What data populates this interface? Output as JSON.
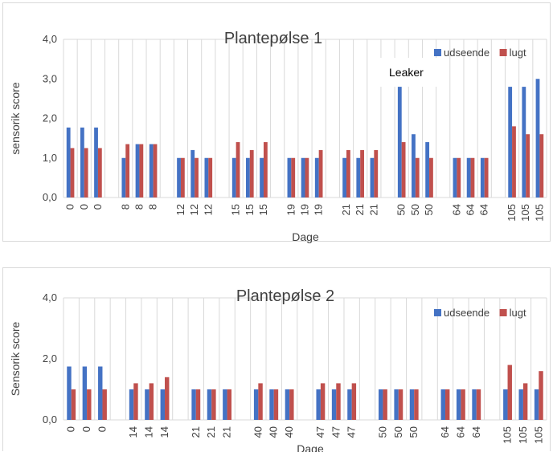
{
  "chart_data": [
    {
      "type": "bar",
      "title": "Plantepølse 1",
      "xlabel": "Dage",
      "ylabel": "sensorik score",
      "ylim": [
        0,
        4
      ],
      "yticks": [
        "0,0",
        "1,0",
        "2,0",
        "3,0",
        "4,0"
      ],
      "grid": "vertical",
      "legend": "top-right",
      "categories": [
        "0",
        "0",
        "0",
        "8",
        "8",
        "8",
        "12",
        "12",
        "12",
        "15",
        "15",
        "15",
        "19",
        "19",
        "19",
        "21",
        "21",
        "21",
        "50",
        "50",
        "50",
        "64",
        "64",
        "64",
        "105",
        "105",
        "105"
      ],
      "series": [
        {
          "name": "udseende",
          "color": "#4472C4",
          "values": [
            1.77,
            1.77,
            1.77,
            1.0,
            1.35,
            1.35,
            1.0,
            1.2,
            1.0,
            1.0,
            1.0,
            1.0,
            1.0,
            1.0,
            1.0,
            1.0,
            1.0,
            1.0,
            2.8,
            1.6,
            1.4,
            1.0,
            1.0,
            1.0,
            2.8,
            2.8,
            3.0
          ]
        },
        {
          "name": "lugt",
          "color": "#C0504D",
          "values": [
            1.25,
            1.25,
            1.25,
            1.35,
            1.35,
            1.35,
            1.0,
            1.0,
            1.0,
            1.4,
            1.2,
            1.4,
            1.0,
            1.0,
            1.2,
            1.2,
            1.2,
            1.2,
            1.4,
            1.0,
            1.0,
            1.0,
            1.0,
            1.0,
            1.8,
            1.6,
            1.6
          ]
        }
      ],
      "annotations": [
        "Leaker"
      ]
    },
    {
      "type": "bar",
      "title": "Plantepølse 2",
      "xlabel": "Dage",
      "ylabel": "Sensorik score",
      "ylim": [
        0,
        4
      ],
      "yticks": [
        "0,0",
        "2,0",
        "4,0"
      ],
      "grid": "vertical",
      "legend": "top-right",
      "categories": [
        "0",
        "0",
        "0",
        "14",
        "14",
        "14",
        "21",
        "21",
        "21",
        "40",
        "40",
        "40",
        "47",
        "47",
        "47",
        "50",
        "50",
        "50",
        "64",
        "64",
        "64",
        "105",
        "105",
        "105"
      ],
      "series": [
        {
          "name": "udseende",
          "color": "#4472C4",
          "values": [
            1.75,
            1.75,
            1.75,
            1.0,
            1.0,
            1.0,
            1.0,
            1.0,
            1.0,
            1.0,
            1.0,
            1.0,
            1.0,
            1.0,
            1.0,
            1.0,
            1.0,
            1.0,
            1.0,
            1.0,
            1.0,
            1.0,
            1.0,
            1.0
          ]
        },
        {
          "name": "lugt",
          "color": "#C0504D",
          "values": [
            1.0,
            1.0,
            1.0,
            1.2,
            1.2,
            1.4,
            1.0,
            1.0,
            1.0,
            1.2,
            1.0,
            1.0,
            1.2,
            1.2,
            1.2,
            1.0,
            1.0,
            1.0,
            1.0,
            1.0,
            1.0,
            1.8,
            1.2,
            1.6
          ]
        }
      ]
    }
  ]
}
